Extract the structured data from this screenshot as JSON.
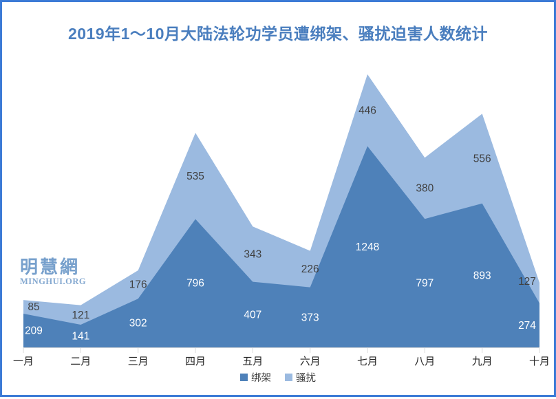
{
  "title": "2019年1～10月大陆法轮功学员遭绑架、骚扰迫害人数统计",
  "watermark": {
    "cjk": "明慧網",
    "latin": "MINGHUI.ORG"
  },
  "colors": {
    "frame_border": "#3C7BD6",
    "title_text": "#4A7EBE",
    "axis_tick": "#D9D9D9",
    "axis_label_text": "#262626",
    "dark_label_text": "#404040",
    "white_label_text": "#FFFFFF"
  },
  "chart_data": {
    "type": "area",
    "stacked": true,
    "title": "2019年1～10月大陆法轮功学员遭绑架、骚扰迫害人数统计",
    "categories": [
      "一月",
      "二月",
      "三月",
      "四月",
      "五月",
      "六月",
      "七月",
      "八月",
      "九月",
      "十月"
    ],
    "series": [
      {
        "name": "绑架",
        "color": "#4E81B9",
        "label_color": "#FFFFFF",
        "values": [
          209,
          141,
          302,
          796,
          407,
          373,
          1248,
          797,
          893,
          274
        ]
      },
      {
        "name": "骚扰",
        "color": "#9BBAE0",
        "label_color": "#404040",
        "values": [
          85,
          121,
          176,
          535,
          343,
          226,
          446,
          380,
          556,
          127
        ]
      }
    ],
    "totals": [
      294,
      262,
      478,
      1331,
      750,
      599,
      1694,
      1177,
      1449,
      401
    ],
    "xlabel": "",
    "ylabel": "",
    "ylim": [
      0,
      1800
    ],
    "grid": false,
    "y_axis_visible": false,
    "legend_position": "bottom",
    "data_labels": true
  }
}
